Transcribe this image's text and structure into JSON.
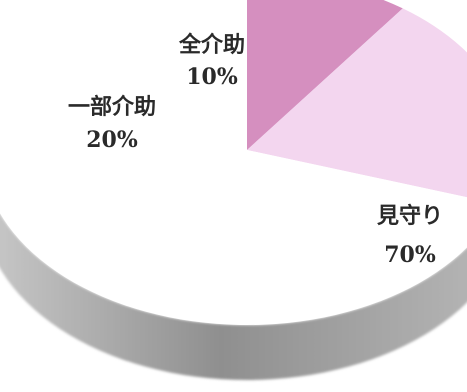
{
  "chart_data": {
    "type": "pie",
    "style": "3d",
    "slices": [
      {
        "label": "全介助",
        "value": 10,
        "value_label": "10%",
        "color": "#d58fbf"
      },
      {
        "label": "一部介助",
        "value": 20,
        "value_label": "20%",
        "color": "#f3d6ef"
      },
      {
        "label": "見守り",
        "value": 70,
        "value_label": "70%",
        "color": "#ffffff"
      }
    ],
    "title": "",
    "legend": "none"
  }
}
